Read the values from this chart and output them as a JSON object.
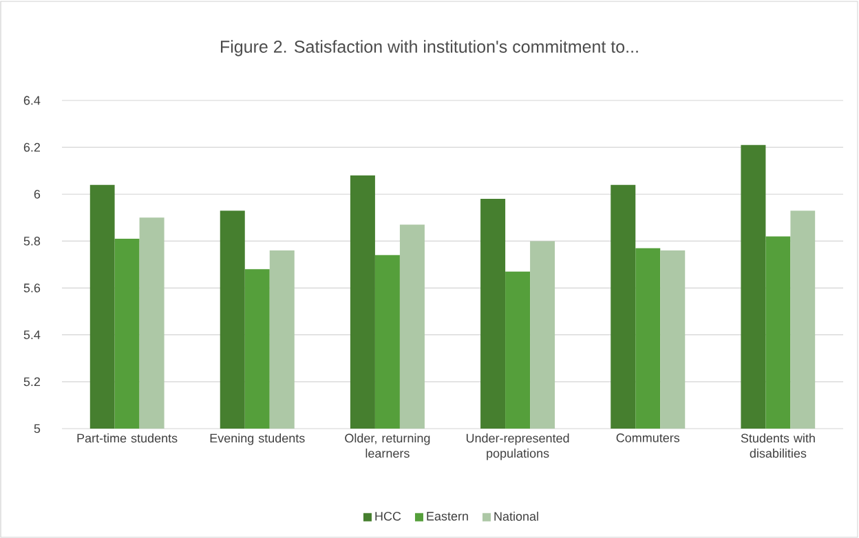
{
  "chart_data": {
    "type": "bar",
    "title": "Figure 2. Satisfaction with institution's commitment to...",
    "categories": [
      "Part-time students",
      "Evening students",
      "Older, returning learners",
      "Under-represented populations",
      "Commuters",
      "Students with disabilities"
    ],
    "series": [
      {
        "name": "HCC",
        "color": "#467f2f",
        "values": [
          6.04,
          5.93,
          6.08,
          5.98,
          6.04,
          6.21
        ]
      },
      {
        "name": "Eastern",
        "color": "#559f3b",
        "values": [
          5.81,
          5.68,
          5.74,
          5.67,
          5.77,
          5.82
        ]
      },
      {
        "name": "National",
        "color": "#adc8a6",
        "values": [
          5.9,
          5.76,
          5.87,
          5.8,
          5.76,
          5.93
        ]
      }
    ],
    "ylim": [
      5,
      6.4
    ],
    "yticks": [
      5,
      5.2,
      5.4,
      5.6,
      5.8,
      6,
      6.2,
      6.4
    ],
    "grid": "y",
    "legend": "bottom"
  }
}
